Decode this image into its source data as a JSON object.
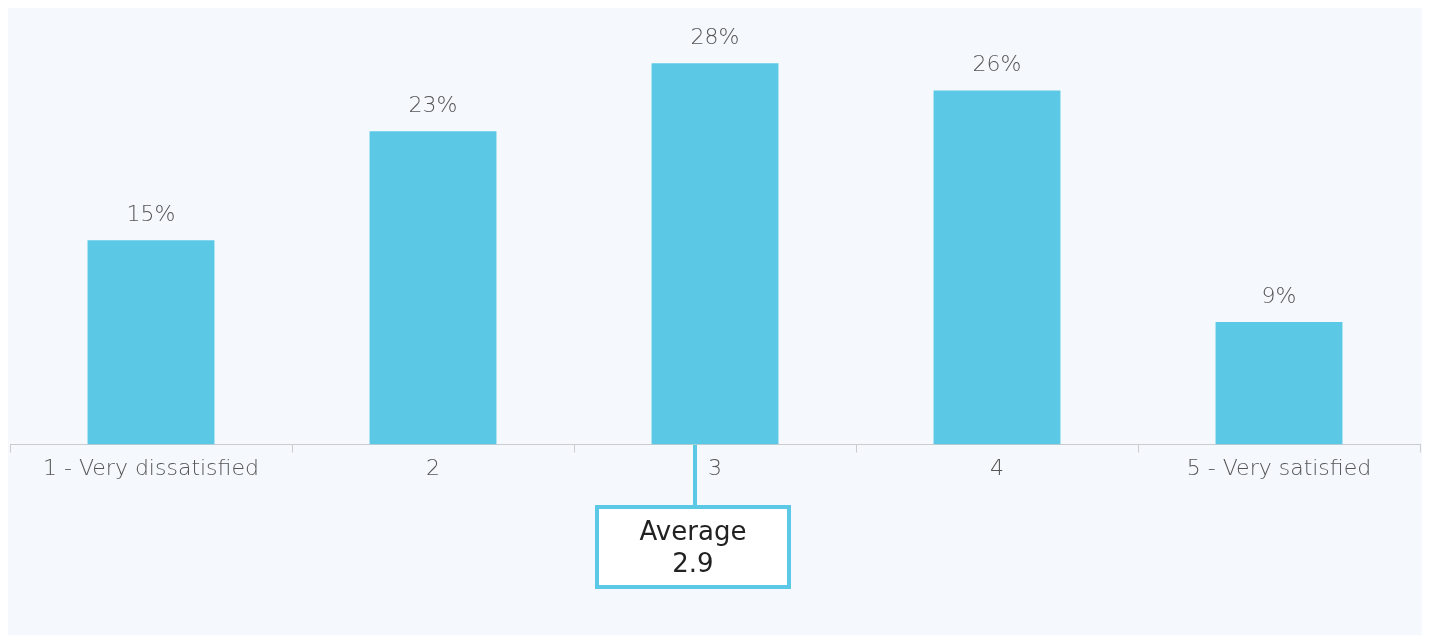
{
  "chart_data": {
    "type": "bar",
    "categories": [
      "1 - Very dissatisfied",
      "2",
      "3",
      "4",
      "5 - Very satisfied"
    ],
    "values": [
      15,
      23,
      28,
      26,
      9
    ],
    "value_labels": [
      "15%",
      "23%",
      "28%",
      "26%",
      "9%"
    ],
    "color": "#5bc9e5",
    "annotations": [
      "Average 2.9"
    ]
  }
}
